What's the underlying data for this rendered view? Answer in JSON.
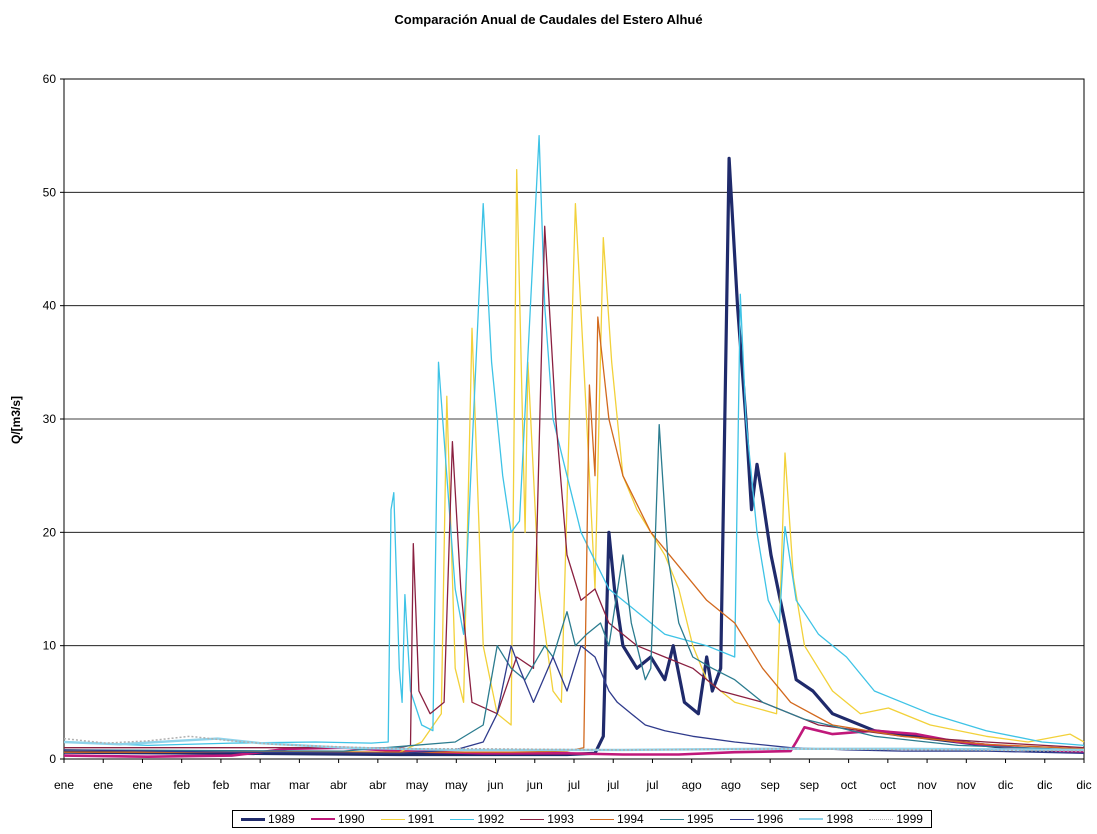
{
  "chart_data": {
    "type": "line",
    "title": "Comparación Anual de Caudales del Estero Alhué",
    "xlabel": "",
    "ylabel": "Q/[m3/s]",
    "ylim": [
      0,
      60
    ],
    "yticks": [
      0,
      10,
      20,
      30,
      40,
      50,
      60
    ],
    "xlim": [
      0,
      365
    ],
    "xtick_labels": [
      "ene",
      "ene",
      "ene",
      "feb",
      "feb",
      "mar",
      "mar",
      "abr",
      "abr",
      "may",
      "may",
      "jun",
      "jun",
      "jul",
      "jul",
      "jul",
      "ago",
      "ago",
      "sep",
      "sep",
      "oct",
      "oct",
      "nov",
      "nov",
      "dic",
      "dic",
      "dic"
    ],
    "grid": "horizontal",
    "legend_position": "bottom",
    "series": [
      {
        "name": "1989",
        "color": "#1f2a6b",
        "points": [
          [
            0,
            0.6
          ],
          [
            60,
            0.5
          ],
          [
            120,
            0.4
          ],
          [
            180,
            0.4
          ],
          [
            190,
            0.5
          ],
          [
            193,
            2
          ],
          [
            195,
            20
          ],
          [
            197,
            15
          ],
          [
            200,
            10
          ],
          [
            205,
            8
          ],
          [
            210,
            9
          ],
          [
            215,
            7
          ],
          [
            218,
            10
          ],
          [
            222,
            5
          ],
          [
            227,
            4
          ],
          [
            230,
            9
          ],
          [
            232,
            6
          ],
          [
            235,
            8
          ],
          [
            238,
            53
          ],
          [
            241,
            40
          ],
          [
            244,
            30
          ],
          [
            246,
            22
          ],
          [
            248,
            26
          ],
          [
            250,
            23
          ],
          [
            253,
            18
          ],
          [
            258,
            12
          ],
          [
            262,
            7
          ],
          [
            268,
            6
          ],
          [
            275,
            4
          ],
          [
            290,
            2.5
          ],
          [
            310,
            1.8
          ],
          [
            330,
            1.2
          ],
          [
            345,
            0.8
          ],
          [
            365,
            0.7
          ]
        ]
      },
      {
        "name": "1990",
        "color": "#c0187a",
        "points": [
          [
            0,
            0.3
          ],
          [
            30,
            0.2
          ],
          [
            60,
            0.3
          ],
          [
            80,
            0.9
          ],
          [
            100,
            1.0
          ],
          [
            120,
            0.7
          ],
          [
            150,
            0.5
          ],
          [
            180,
            0.5
          ],
          [
            200,
            0.4
          ],
          [
            220,
            0.4
          ],
          [
            240,
            0.6
          ],
          [
            260,
            0.7
          ],
          [
            262,
            1.5
          ],
          [
            265,
            2.8
          ],
          [
            275,
            2.2
          ],
          [
            290,
            2.5
          ],
          [
            305,
            2.2
          ],
          [
            320,
            1.5
          ],
          [
            340,
            1.0
          ],
          [
            365,
            0.6
          ]
        ]
      },
      {
        "name": "1991",
        "color": "#f2d13a",
        "points": [
          [
            0,
            0.8
          ],
          [
            120,
            0.6
          ],
          [
            128,
            1.5
          ],
          [
            135,
            4
          ],
          [
            137,
            32
          ],
          [
            140,
            8
          ],
          [
            143,
            5
          ],
          [
            146,
            38
          ],
          [
            150,
            10
          ],
          [
            155,
            4
          ],
          [
            160,
            3
          ],
          [
            162,
            52
          ],
          [
            165,
            20
          ],
          [
            166,
            35
          ],
          [
            170,
            15
          ],
          [
            175,
            6
          ],
          [
            178,
            5
          ],
          [
            183,
            49
          ],
          [
            187,
            30
          ],
          [
            190,
            15
          ],
          [
            193,
            46
          ],
          [
            196,
            35
          ],
          [
            200,
            25
          ],
          [
            205,
            22
          ],
          [
            210,
            20
          ],
          [
            215,
            18
          ],
          [
            220,
            15
          ],
          [
            225,
            10
          ],
          [
            230,
            7
          ],
          [
            240,
            5
          ],
          [
            255,
            4
          ],
          [
            258,
            27
          ],
          [
            261,
            16
          ],
          [
            265,
            10
          ],
          [
            275,
            6
          ],
          [
            285,
            4
          ],
          [
            295,
            4.5
          ],
          [
            310,
            3
          ],
          [
            330,
            2
          ],
          [
            345,
            1.5
          ],
          [
            360,
            2.2
          ],
          [
            365,
            1.5
          ]
        ]
      },
      {
        "name": "1992",
        "color": "#3ec3e6",
        "points": [
          [
            0,
            1.5
          ],
          [
            30,
            1.2
          ],
          [
            60,
            1.4
          ],
          [
            90,
            1.5
          ],
          [
            110,
            1.4
          ],
          [
            116,
            1.5
          ],
          [
            117,
            22
          ],
          [
            118,
            23.5
          ],
          [
            120,
            8
          ],
          [
            121,
            5
          ],
          [
            122,
            14.5
          ],
          [
            124,
            6
          ],
          [
            128,
            3
          ],
          [
            132,
            2.5
          ],
          [
            134,
            35
          ],
          [
            137,
            25
          ],
          [
            140,
            15
          ],
          [
            143,
            11
          ],
          [
            150,
            49
          ],
          [
            153,
            35
          ],
          [
            157,
            25
          ],
          [
            160,
            20
          ],
          [
            163,
            21
          ],
          [
            170,
            55
          ],
          [
            172,
            40
          ],
          [
            175,
            30
          ],
          [
            180,
            25
          ],
          [
            185,
            20
          ],
          [
            195,
            15
          ],
          [
            205,
            13
          ],
          [
            215,
            11
          ],
          [
            230,
            10
          ],
          [
            240,
            9
          ],
          [
            242,
            41
          ],
          [
            244,
            30
          ],
          [
            248,
            20
          ],
          [
            252,
            14
          ],
          [
            256,
            12
          ],
          [
            258,
            20.5
          ],
          [
            262,
            14
          ],
          [
            270,
            11
          ],
          [
            280,
            9
          ],
          [
            290,
            6
          ],
          [
            310,
            4
          ],
          [
            330,
            2.5
          ],
          [
            350,
            1.5
          ],
          [
            365,
            1.2
          ]
        ]
      },
      {
        "name": "1993",
        "color": "#8a2040",
        "points": [
          [
            0,
            1.0
          ],
          [
            60,
            1.0
          ],
          [
            120,
            1.0
          ],
          [
            124,
            1.2
          ],
          [
            125,
            19
          ],
          [
            127,
            6
          ],
          [
            131,
            4
          ],
          [
            136,
            5
          ],
          [
            139,
            28
          ],
          [
            142,
            15
          ],
          [
            146,
            5
          ],
          [
            155,
            4
          ],
          [
            162,
            9
          ],
          [
            168,
            8
          ],
          [
            172,
            47
          ],
          [
            176,
            30
          ],
          [
            180,
            18
          ],
          [
            185,
            14
          ],
          [
            190,
            15
          ],
          [
            195,
            12
          ],
          [
            205,
            10
          ],
          [
            215,
            9
          ],
          [
            225,
            8
          ],
          [
            235,
            6
          ],
          [
            250,
            5
          ],
          [
            270,
            3
          ],
          [
            300,
            2
          ],
          [
            330,
            1.5
          ],
          [
            365,
            1.0
          ]
        ]
      },
      {
        "name": "1994",
        "color": "#d2691e",
        "points": [
          [
            0,
            0.6
          ],
          [
            100,
            0.6
          ],
          [
            160,
            0.6
          ],
          [
            180,
            0.7
          ],
          [
            186,
            1
          ],
          [
            188,
            33
          ],
          [
            190,
            25
          ],
          [
            191,
            39
          ],
          [
            195,
            30
          ],
          [
            200,
            25
          ],
          [
            210,
            20
          ],
          [
            220,
            17
          ],
          [
            230,
            14
          ],
          [
            240,
            12
          ],
          [
            250,
            8
          ],
          [
            260,
            5
          ],
          [
            275,
            3
          ],
          [
            300,
            2
          ],
          [
            330,
            1.3
          ],
          [
            365,
            0.9
          ]
        ]
      },
      {
        "name": "1995",
        "color": "#2b7c8f",
        "points": [
          [
            0,
            0.8
          ],
          [
            100,
            0.7
          ],
          [
            140,
            1.5
          ],
          [
            150,
            3
          ],
          [
            155,
            10
          ],
          [
            160,
            8
          ],
          [
            165,
            7
          ],
          [
            172,
            10
          ],
          [
            175,
            9
          ],
          [
            180,
            13
          ],
          [
            183,
            10
          ],
          [
            187,
            11
          ],
          [
            192,
            12
          ],
          [
            195,
            10
          ],
          [
            200,
            18
          ],
          [
            203,
            12
          ],
          [
            208,
            7
          ],
          [
            210,
            8
          ],
          [
            213,
            29.5
          ],
          [
            216,
            18
          ],
          [
            220,
            12
          ],
          [
            225,
            9
          ],
          [
            232,
            8
          ],
          [
            240,
            7
          ],
          [
            250,
            5
          ],
          [
            265,
            3.5
          ],
          [
            290,
            2
          ],
          [
            320,
            1.2
          ],
          [
            365,
            0.8
          ]
        ]
      },
      {
        "name": "1996",
        "color": "#2f3b8c",
        "points": [
          [
            0,
            0.8
          ],
          [
            60,
            0.6
          ],
          [
            120,
            0.5
          ],
          [
            140,
            0.8
          ],
          [
            150,
            1.5
          ],
          [
            155,
            4
          ],
          [
            160,
            10
          ],
          [
            163,
            8
          ],
          [
            168,
            5
          ],
          [
            175,
            9
          ],
          [
            180,
            6
          ],
          [
            185,
            10
          ],
          [
            190,
            9
          ],
          [
            195,
            6
          ],
          [
            198,
            5
          ],
          [
            203,
            4
          ],
          [
            208,
            3
          ],
          [
            215,
            2.5
          ],
          [
            225,
            2
          ],
          [
            240,
            1.5
          ],
          [
            260,
            1
          ],
          [
            280,
            0.8
          ],
          [
            300,
            0.7
          ],
          [
            330,
            0.7
          ],
          [
            365,
            0.5
          ]
        ]
      },
      {
        "name": "1998",
        "color": "#8fd3ea",
        "points": [
          [
            0,
            1.5
          ],
          [
            20,
            1.3
          ],
          [
            40,
            1.6
          ],
          [
            55,
            1.8
          ],
          [
            70,
            1.4
          ],
          [
            85,
            1.2
          ],
          [
            100,
            1.0
          ],
          [
            120,
            0.9
          ],
          [
            140,
            0.8
          ],
          [
            160,
            0.8
          ],
          [
            200,
            0.8
          ],
          [
            250,
            0.9
          ],
          [
            300,
            0.9
          ],
          [
            365,
            0.8
          ]
        ]
      },
      {
        "name": "1999",
        "color": "#b0b0b0",
        "points": [
          [
            0,
            1.8
          ],
          [
            15,
            1.4
          ],
          [
            30,
            1.6
          ],
          [
            45,
            2.0
          ],
          [
            60,
            1.6
          ],
          [
            75,
            1.3
          ],
          [
            95,
            1.1
          ],
          [
            120,
            0.9
          ],
          [
            150,
            0.9
          ],
          [
            200,
            0.8
          ],
          [
            260,
            0.9
          ],
          [
            320,
            0.8
          ],
          [
            365,
            0.7
          ]
        ]
      }
    ]
  }
}
